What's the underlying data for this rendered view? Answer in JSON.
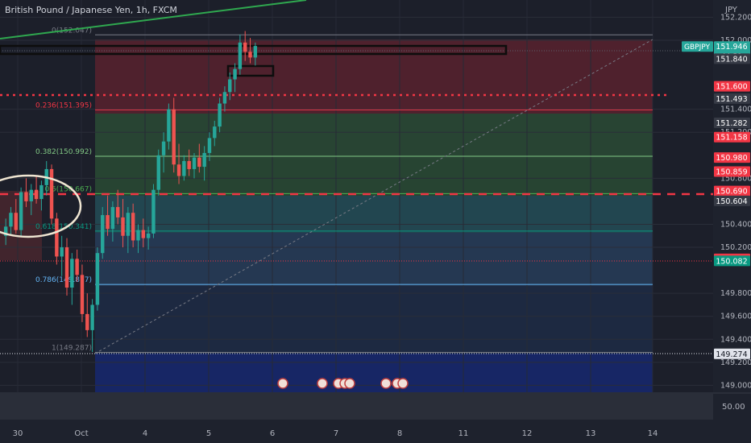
{
  "symbol_title": "British Pound / Japanese Yen, 1h, FXCM",
  "currency_label": "JPY",
  "chart_data": {
    "type": "candlestick",
    "y_axis_ticks": [
      "152.200",
      "152.000",
      "151.400",
      "151.200",
      "150.800",
      "150.400",
      "150.200",
      "149.800",
      "149.600",
      "149.400",
      "149.200",
      "149.000"
    ],
    "x_axis_ticks": [
      "30",
      "Oct",
      "4",
      "5",
      "6",
      "7",
      "8",
      "11",
      "12",
      "13",
      "14"
    ],
    "ylim": [
      148.94,
      152.35
    ],
    "fib_levels": [
      {
        "label": "0(152.047)",
        "ratio": 0,
        "price": 152.047
      },
      {
        "label": "0.236(151.395)",
        "ratio": 0.236,
        "price": 151.395
      },
      {
        "label": "0.382(150.992)",
        "ratio": 0.382,
        "price": 150.992
      },
      {
        "label": "0.5(150.667)",
        "ratio": 0.5,
        "price": 150.667
      },
      {
        "label": "0.618(150.341)",
        "ratio": 0.618,
        "price": 150.341
      },
      {
        "label": "0.786(149.877)",
        "ratio": 0.786,
        "price": 149.877
      },
      {
        "label": "1(149.287)",
        "ratio": 1,
        "price": 149.287
      }
    ],
    "price_tags": [
      {
        "text": "151.946",
        "sub": "44:51",
        "price": 151.946,
        "color": "#26a69a",
        "label": "GBPJPY"
      },
      {
        "text": "151.840",
        "price": 151.84,
        "color": "#363a45"
      },
      {
        "text": "151.600",
        "price": 151.6,
        "color": "#f23645"
      },
      {
        "text": "151.493",
        "price": 151.493,
        "color": "#363a45"
      },
      {
        "text": "151.282",
        "price": 151.282,
        "color": "#363a45"
      },
      {
        "text": "151.158",
        "price": 151.158,
        "color": "#f23645"
      },
      {
        "text": "150.980",
        "price": 150.98,
        "color": "#f23645"
      },
      {
        "text": "150.859",
        "price": 150.859,
        "color": "#f23645"
      },
      {
        "text": "150.690",
        "price": 150.69,
        "color": "#f23645"
      },
      {
        "text": "150.604",
        "price": 150.604,
        "color": "#363a45"
      },
      {
        "text": "150.100",
        "price": 150.1,
        "color": "#f23645"
      },
      {
        "text": "150.082",
        "price": 150.082,
        "color": "#089981"
      },
      {
        "text": "149.274",
        "price": 149.274,
        "color": "#e0e3eb"
      }
    ],
    "volume_label": "50.00",
    "series": [
      {
        "candles": [
          [
            150.3,
            150.45,
            150.22,
            150.38
          ],
          [
            150.38,
            150.55,
            150.3,
            150.5
          ],
          [
            150.5,
            150.62,
            150.32,
            150.35
          ],
          [
            150.35,
            150.72,
            150.3,
            150.68
          ],
          [
            150.68,
            150.8,
            150.55,
            150.6
          ],
          [
            150.6,
            150.75,
            150.48,
            150.7
          ],
          [
            150.7,
            150.82,
            150.58,
            150.62
          ],
          [
            150.62,
            150.78,
            150.52,
            150.74
          ],
          [
            150.74,
            150.95,
            150.65,
            150.88
          ],
          [
            150.88,
            150.92,
            150.4,
            150.45
          ],
          [
            150.45,
            150.5,
            150.05,
            150.12
          ],
          [
            150.12,
            150.3,
            149.95,
            150.2
          ],
          [
            150.2,
            150.28,
            149.78,
            149.85
          ],
          [
            149.85,
            150.15,
            149.7,
            150.1
          ],
          [
            150.1,
            150.18,
            149.9,
            149.96
          ],
          [
            149.96,
            150.05,
            149.55,
            149.62
          ],
          [
            149.62,
            149.8,
            149.42,
            149.48
          ],
          [
            149.48,
            149.75,
            149.29,
            149.7
          ],
          [
            149.7,
            150.2,
            149.65,
            150.15
          ],
          [
            150.15,
            150.55,
            150.1,
            150.48
          ],
          [
            150.48,
            150.65,
            150.3,
            150.36
          ],
          [
            150.36,
            150.6,
            150.25,
            150.55
          ],
          [
            150.55,
            150.7,
            150.4,
            150.46
          ],
          [
            150.46,
            150.62,
            150.2,
            150.3
          ],
          [
            150.3,
            150.55,
            150.15,
            150.5
          ],
          [
            150.5,
            150.58,
            150.2,
            150.26
          ],
          [
            150.26,
            150.4,
            150.15,
            150.35
          ],
          [
            150.35,
            150.45,
            150.2,
            150.28
          ],
          [
            150.28,
            150.38,
            150.18,
            150.32
          ],
          [
            150.32,
            150.75,
            150.28,
            150.7
          ],
          [
            150.7,
            151.05,
            150.65,
            151.0
          ],
          [
            151.0,
            151.2,
            150.85,
            151.12
          ],
          [
            151.12,
            151.45,
            151.05,
            151.4
          ],
          [
            151.4,
            151.5,
            150.85,
            150.92
          ],
          [
            150.92,
            151.1,
            150.75,
            150.82
          ],
          [
            150.82,
            151.0,
            150.78,
            150.95
          ],
          [
            150.95,
            151.05,
            150.82,
            150.88
          ],
          [
            150.88,
            151.02,
            150.8,
            150.98
          ],
          [
            150.98,
            151.1,
            150.85,
            150.9
          ],
          [
            150.9,
            151.08,
            150.78,
            151.02
          ],
          [
            151.02,
            151.2,
            150.95,
            151.15
          ],
          [
            151.15,
            151.3,
            151.08,
            151.25
          ],
          [
            151.25,
            151.5,
            151.2,
            151.45
          ],
          [
            151.45,
            151.6,
            151.38,
            151.55
          ],
          [
            151.55,
            151.72,
            151.48,
            151.66
          ],
          [
            151.66,
            151.8,
            151.55,
            151.75
          ],
          [
            151.75,
            152.05,
            151.7,
            151.98
          ],
          [
            151.98,
            152.08,
            151.82,
            151.9
          ],
          [
            151.9,
            152.02,
            151.8,
            151.85
          ],
          [
            151.85,
            151.98,
            151.78,
            151.95
          ]
        ]
      }
    ]
  }
}
